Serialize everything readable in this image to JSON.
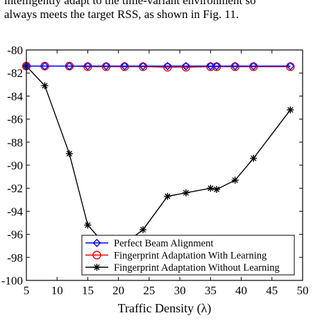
{
  "caption": {
    "line1": "intelligently adapt to the time-variant environment so",
    "line2": "always meets the target RSS, as shown in Fig. 11."
  },
  "chart_data": {
    "type": "line",
    "title": "",
    "xlabel": "Traffic Density (λ)",
    "ylabel": "",
    "xlim": [
      5,
      50
    ],
    "ylim": [
      -100,
      -80
    ],
    "xticks": [
      5,
      10,
      15,
      20,
      25,
      30,
      35,
      40,
      45,
      50
    ],
    "yticks": [
      -80,
      -82,
      -84,
      -86,
      -88,
      -90,
      -92,
      -94,
      -96,
      -98,
      -100
    ],
    "legend_position": "bottom-right",
    "series": [
      {
        "name": "Perfect Beam Alignment",
        "color": "#0000ff",
        "marker": "diamond",
        "x": [
          5,
          8,
          12,
          15,
          18,
          21,
          24,
          28,
          31,
          35,
          36,
          39,
          42,
          48
        ],
        "y": [
          -81.4,
          -81.4,
          -81.4,
          -81.4,
          -81.4,
          -81.4,
          -81.4,
          -81.4,
          -81.4,
          -81.4,
          -81.4,
          -81.4,
          -81.4,
          -81.4
        ]
      },
      {
        "name": "Fingerprint Adaptation With Learning",
        "color": "#ff0000",
        "marker": "circle",
        "x": [
          5,
          8,
          12,
          15,
          18,
          21,
          24,
          28,
          31,
          35,
          36,
          39,
          42,
          48
        ],
        "y": [
          -81.4,
          -81.4,
          -81.4,
          -81.45,
          -81.45,
          -81.45,
          -81.45,
          -81.5,
          -81.5,
          -81.45,
          -81.45,
          -81.45,
          -81.45,
          -81.45
        ]
      },
      {
        "name": "Fingerprint Adaptation Without Learning",
        "color": "#000000",
        "marker": "star",
        "x": [
          5,
          8,
          12,
          15,
          18,
          21,
          24,
          28,
          31,
          35,
          36,
          39,
          42,
          48
        ],
        "y": [
          -81.4,
          -83.1,
          -89.0,
          -95.2,
          -97.0,
          -96.8,
          -95.6,
          -92.7,
          -92.4,
          -92.0,
          -92.1,
          -91.3,
          -89.4,
          -85.2
        ]
      }
    ]
  }
}
